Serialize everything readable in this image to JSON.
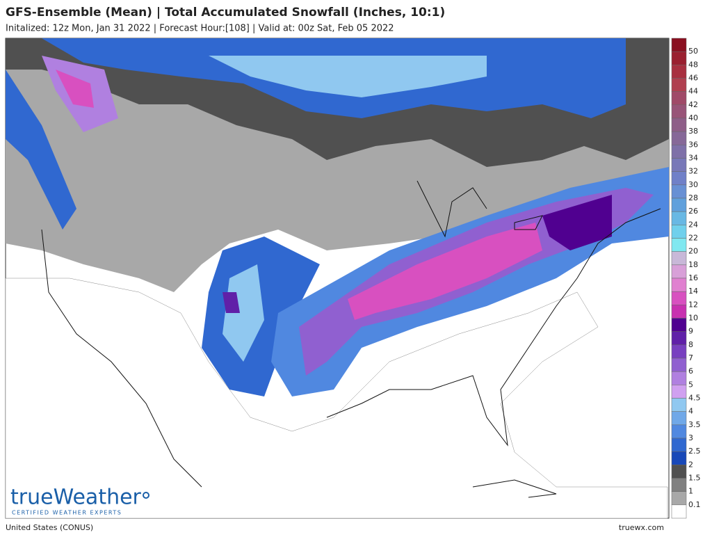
{
  "header": {
    "title": "GFS-Ensemble (Mean) | Total Accumulated Snowfall (Inches, 10:1)",
    "subtitle": "Initalized: 12z Mon, Jan 31 2022 | Forecast Hour:[108] | Valid at: 00z Sat, Feb 05 2022"
  },
  "legend": {
    "levels": [
      {
        "label": "50",
        "color": "#8a1020"
      },
      {
        "label": "48",
        "color": "#9a2030"
      },
      {
        "label": "46",
        "color": "#a83040"
      },
      {
        "label": "44",
        "color": "#b04050"
      },
      {
        "label": "42",
        "color": "#a04a68"
      },
      {
        "label": "40",
        "color": "#985478"
      },
      {
        "label": "38",
        "color": "#8e5e88"
      },
      {
        "label": "36",
        "color": "#866898"
      },
      {
        "label": "34",
        "color": "#7e70a8"
      },
      {
        "label": "32",
        "color": "#7878b8"
      },
      {
        "label": "30",
        "color": "#7080c8"
      },
      {
        "label": "28",
        "color": "#6890d4"
      },
      {
        "label": "26",
        "color": "#60a0dc"
      },
      {
        "label": "24",
        "color": "#68b8e4"
      },
      {
        "label": "22",
        "color": "#70d0ec"
      },
      {
        "label": "20",
        "color": "#80e8f0"
      },
      {
        "label": "18",
        "color": "#c8b8d8"
      },
      {
        "label": "16",
        "color": "#d8a0d8"
      },
      {
        "label": "14",
        "color": "#e080d0"
      },
      {
        "label": "12",
        "color": "#d850c0"
      },
      {
        "label": "10",
        "color": "#c830b0"
      },
      {
        "label": "9",
        "color": "#500090"
      },
      {
        "label": "8",
        "color": "#6020a8"
      },
      {
        "label": "7",
        "color": "#7840c0"
      },
      {
        "label": "6",
        "color": "#9060d0"
      },
      {
        "label": "5",
        "color": "#b080e0"
      },
      {
        "label": "4.5",
        "color": "#d0a0f0"
      },
      {
        "label": "4",
        "color": "#90c8f0"
      },
      {
        "label": "3.5",
        "color": "#70a8e8"
      },
      {
        "label": "3",
        "color": "#5088e0"
      },
      {
        "label": "2.5",
        "color": "#3068d0"
      },
      {
        "label": "2",
        "color": "#1848b8"
      },
      {
        "label": "1.5",
        "color": "#505050"
      },
      {
        "label": "1",
        "color": "#808080"
      },
      {
        "label": "0.1",
        "color": "#a8a8a8"
      },
      {
        "label": null,
        "color": "#ffffff"
      }
    ]
  },
  "logo": {
    "name": "trueWeather",
    "tagline": "CERTIFIED WEATHER EXPERTS"
  },
  "footer": {
    "region": "United States (CONUS)",
    "site": "truewx.com"
  }
}
